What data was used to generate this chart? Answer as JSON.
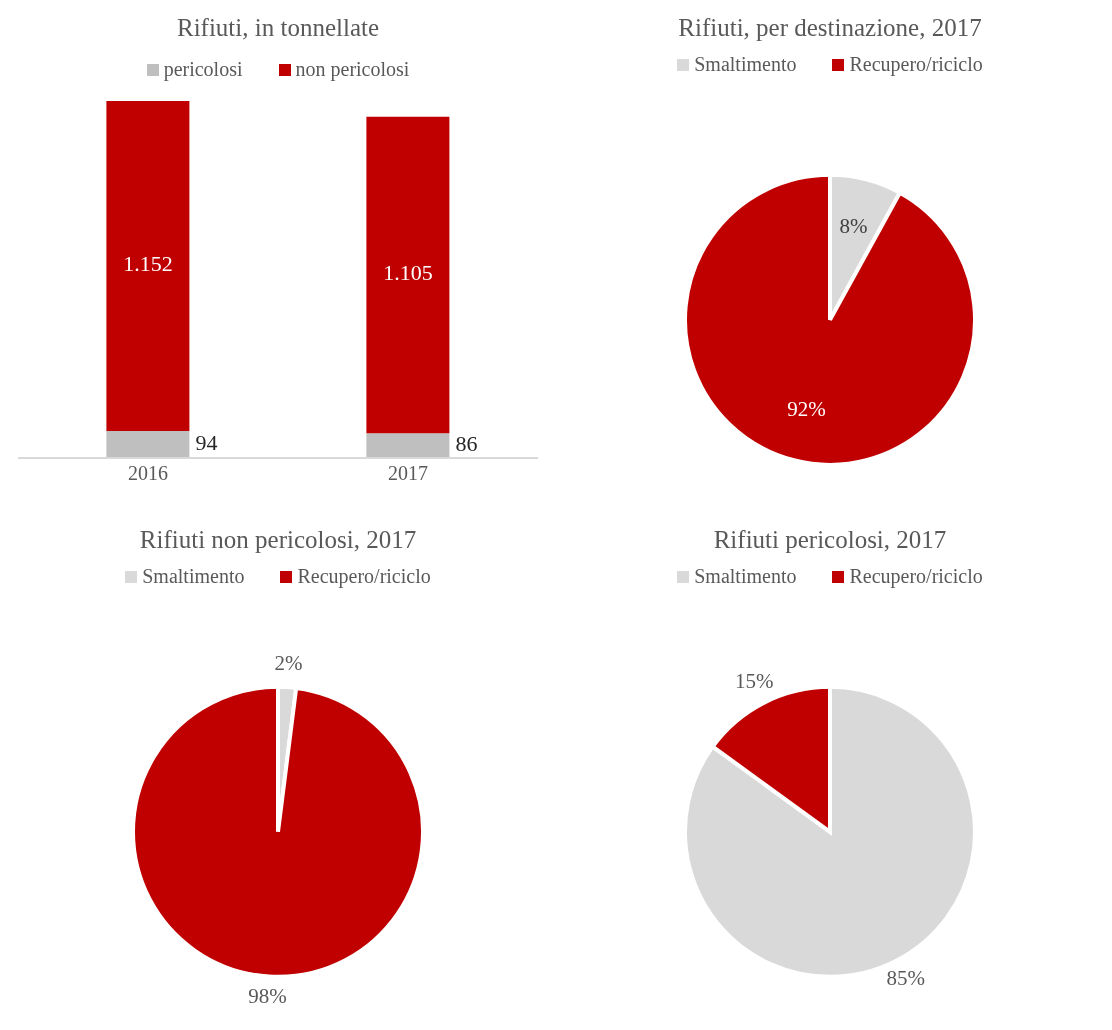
{
  "chart_data": [
    {
      "type": "bar",
      "title": "Rifiuti, in tonnellate",
      "categories": [
        "2016",
        "2017"
      ],
      "stacked": true,
      "legend": "top",
      "series": [
        {
          "name": "pericolosi",
          "color": "#bfbfbf",
          "values": [
            94,
            86
          ],
          "value_labels": [
            "94",
            "86"
          ]
        },
        {
          "name": "non pericolosi",
          "color": "#c00000",
          "values": [
            1152,
            1105
          ],
          "value_labels": [
            "1.152",
            "1.105"
          ]
        }
      ]
    },
    {
      "type": "pie",
      "title": "Rifiuti, per destinazione, 2017",
      "categories": [
        "Smaltimento",
        "Recupero/riciclo"
      ],
      "values": [
        8,
        92
      ],
      "value_labels": [
        "8%",
        "92%"
      ],
      "colors": [
        "#d9d9d9",
        "#c00000"
      ],
      "legend": "top"
    },
    {
      "type": "pie",
      "title": "Rifiuti non pericolosi, 2017",
      "categories": [
        "Smaltimento",
        "Recupero/riciclo"
      ],
      "values": [
        2,
        98
      ],
      "value_labels": [
        "2%",
        "98%"
      ],
      "colors": [
        "#d9d9d9",
        "#c00000"
      ],
      "legend": "top"
    },
    {
      "type": "pie",
      "title": "Rifiuti pericolosi, 2017",
      "categories": [
        "Smaltimento",
        "Recupero/riciclo"
      ],
      "values": [
        85,
        15
      ],
      "value_labels": [
        "85%",
        "15%"
      ],
      "colors": [
        "#d9d9d9",
        "#c00000"
      ],
      "legend": "top"
    }
  ]
}
